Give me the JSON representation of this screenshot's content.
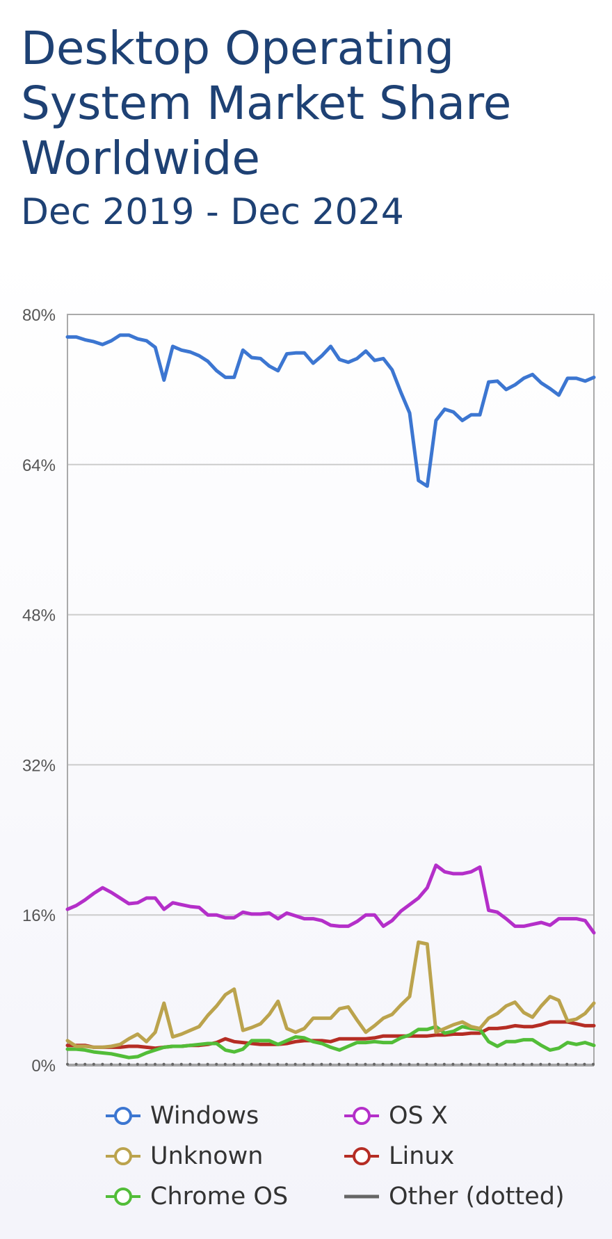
{
  "title": "Desktop Operating System Market Share Worldwide",
  "subtitle": "Dec 2019 - Dec 2024",
  "legend": [
    {
      "label": "Windows",
      "color": "#3c76d1",
      "marker": "circle"
    },
    {
      "label": "OS X",
      "color": "#b42fc9",
      "marker": "circle"
    },
    {
      "label": "Unknown",
      "color": "#bba34d",
      "marker": "circle"
    },
    {
      "label": "Linux",
      "color": "#b52d24",
      "marker": "circle"
    },
    {
      "label": "Chrome OS",
      "color": "#52bd38",
      "marker": "circle"
    },
    {
      "label": "Other (dotted)",
      "color": "#666666",
      "marker": "line"
    }
  ],
  "chart_data": {
    "type": "line",
    "title": "Desktop Operating System Market Share Worldwide",
    "subtitle": "Dec 2019 - Dec 2024",
    "xlabel": "",
    "ylabel": "",
    "ylim": [
      0,
      80
    ],
    "yticks": [
      "0%",
      "16%",
      "32%",
      "48%",
      "64%",
      "80%"
    ],
    "ytick_values": [
      0,
      16,
      32,
      48,
      64,
      80
    ],
    "x_range": [
      "Dec 2019",
      "Dec 2024"
    ],
    "grid": true,
    "legend_position": "bottom",
    "series": [
      {
        "name": "Windows",
        "color": "#3c76d1",
        "style": "solid",
        "values": [
          77.6,
          77.6,
          77.3,
          77.1,
          76.8,
          77.2,
          77.8,
          77.8,
          77.4,
          77.2,
          76.5,
          73.0,
          76.6,
          76.2,
          76.0,
          75.6,
          75.0,
          74.0,
          73.3,
          73.3,
          76.2,
          75.4,
          75.3,
          74.5,
          74.0,
          75.8,
          75.9,
          75.9,
          74.8,
          75.6,
          76.6,
          75.2,
          74.9,
          75.3,
          76.1,
          75.1,
          75.3,
          74.1,
          71.7,
          69.5,
          62.3,
          61.7,
          68.7,
          69.9,
          69.6,
          68.7,
          69.3,
          69.3,
          72.8,
          72.9,
          72.0,
          72.5,
          73.2,
          73.6,
          72.7,
          72.1,
          71.4,
          73.2,
          73.2,
          72.9,
          73.3
        ]
      },
      {
        "name": "OS X",
        "color": "#b42fc9",
        "style": "solid",
        "values": [
          16.6,
          17.0,
          17.6,
          18.3,
          18.9,
          18.4,
          17.8,
          17.2,
          17.3,
          17.8,
          17.8,
          16.6,
          17.3,
          17.1,
          16.9,
          16.8,
          16.0,
          16.0,
          15.7,
          15.7,
          16.3,
          16.1,
          16.1,
          16.2,
          15.6,
          16.2,
          15.9,
          15.6,
          15.6,
          15.4,
          14.9,
          14.8,
          14.8,
          15.3,
          16.0,
          16.0,
          14.8,
          15.4,
          16.4,
          17.1,
          17.8,
          18.9,
          21.3,
          20.6,
          20.4,
          20.4,
          20.6,
          21.1,
          16.5,
          16.3,
          15.6,
          14.8,
          14.8,
          15.0,
          15.2,
          14.9,
          15.6,
          15.6,
          15.6,
          15.4,
          14.1
        ]
      },
      {
        "name": "Unknown",
        "color": "#bba34d",
        "style": "solid",
        "values": [
          2.6,
          2.0,
          2.0,
          1.9,
          1.9,
          2.0,
          2.2,
          2.8,
          3.3,
          2.5,
          3.5,
          6.6,
          3.0,
          3.3,
          3.7,
          4.1,
          5.3,
          6.3,
          7.5,
          8.1,
          3.7,
          4.0,
          4.4,
          5.4,
          6.8,
          3.9,
          3.5,
          3.9,
          5.0,
          5.0,
          5.0,
          6.0,
          6.2,
          4.8,
          3.5,
          4.2,
          5.0,
          5.4,
          6.4,
          7.3,
          13.1,
          12.9,
          3.5,
          3.9,
          4.3,
          4.6,
          4.1,
          3.9,
          5.0,
          5.5,
          6.3,
          6.7,
          5.6,
          5.1,
          6.3,
          7.3,
          6.9,
          4.7,
          4.9,
          5.5,
          6.6
        ]
      },
      {
        "name": "Linux",
        "color": "#b52d24",
        "style": "solid",
        "values": [
          2.1,
          2.1,
          2.1,
          1.9,
          1.9,
          1.9,
          1.9,
          2.0,
          2.0,
          1.9,
          1.8,
          1.9,
          2.0,
          2.0,
          2.1,
          2.1,
          2.2,
          2.4,
          2.8,
          2.5,
          2.4,
          2.3,
          2.2,
          2.2,
          2.2,
          2.3,
          2.5,
          2.6,
          2.6,
          2.6,
          2.5,
          2.8,
          2.8,
          2.8,
          2.8,
          2.9,
          3.1,
          3.1,
          3.1,
          3.1,
          3.1,
          3.1,
          3.2,
          3.2,
          3.3,
          3.3,
          3.4,
          3.4,
          3.9,
          3.9,
          4.0,
          4.2,
          4.1,
          4.1,
          4.3,
          4.6,
          4.6,
          4.6,
          4.4,
          4.2,
          4.2
        ]
      },
      {
        "name": "Chrome OS",
        "color": "#52bd38",
        "style": "solid",
        "values": [
          1.7,
          1.7,
          1.6,
          1.4,
          1.3,
          1.2,
          1.0,
          0.8,
          0.9,
          1.3,
          1.6,
          1.9,
          2.0,
          2.0,
          2.1,
          2.2,
          2.3,
          2.3,
          1.6,
          1.4,
          1.7,
          2.6,
          2.6,
          2.6,
          2.2,
          2.6,
          3.0,
          2.9,
          2.5,
          2.3,
          1.9,
          1.6,
          2.0,
          2.4,
          2.4,
          2.5,
          2.4,
          2.4,
          2.9,
          3.2,
          3.8,
          3.8,
          4.1,
          3.4,
          3.6,
          4.1,
          3.9,
          3.8,
          2.5,
          2.0,
          2.5,
          2.5,
          2.7,
          2.7,
          2.1,
          1.6,
          1.8,
          2.4,
          2.2,
          2.4,
          2.1
        ]
      },
      {
        "name": "Other (dotted)",
        "color": "#666666",
        "style": "dotted",
        "values": [
          0.1,
          0.1,
          0.1,
          0.1,
          0.1,
          0.1,
          0.1,
          0.1,
          0.1,
          0.1,
          0.1,
          0.1,
          0.1,
          0.1,
          0.1,
          0.1,
          0.1,
          0.1,
          0.1,
          0.1,
          0.1,
          0.1,
          0.1,
          0.1,
          0.1,
          0.1,
          0.1,
          0.1,
          0.1,
          0.1,
          0.1,
          0.1,
          0.1,
          0.1,
          0.1,
          0.1,
          0.1,
          0.1,
          0.1,
          0.1,
          0.1,
          0.1,
          0.1,
          0.1,
          0.1,
          0.1,
          0.1,
          0.1,
          0.1,
          0.1,
          0.1,
          0.1,
          0.1,
          0.1,
          0.1,
          0.1,
          0.1,
          0.1,
          0.1,
          0.1,
          0.1
        ]
      }
    ]
  }
}
